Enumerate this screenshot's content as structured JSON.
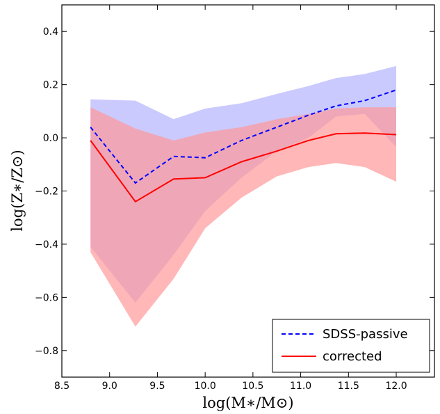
{
  "chart_data": {
    "type": "area",
    "xlabel": "log(M∗/M⊙)",
    "ylabel": "log(Z∗/Z⊙)",
    "xlim": [
      8.5,
      12.4
    ],
    "ylim": [
      -0.9,
      0.5
    ],
    "xticks": [
      8.5,
      9.0,
      9.5,
      10.0,
      10.5,
      11.0,
      11.5,
      12.0
    ],
    "xtick_labels": [
      "8.5",
      "9.0",
      "9.5",
      "10.0",
      "10.5",
      "11.0",
      "11.5",
      "12.0"
    ],
    "yticks": [
      -0.8,
      -0.6,
      -0.4,
      -0.2,
      0.0,
      0.2,
      0.4
    ],
    "ytick_labels": [
      "−0.8",
      "−0.6",
      "−0.4",
      "−0.2",
      "0.0",
      "0.2",
      "0.4"
    ],
    "grid": false,
    "legend_position": "bottom-right",
    "x": [
      8.8,
      9.27,
      9.67,
      10.0,
      10.38,
      10.75,
      11.08,
      11.37,
      11.67,
      12.0
    ],
    "series": [
      {
        "name": "SDSS-passive",
        "style": "dashed",
        "color": "#0000ff",
        "values": [
          0.04,
          -0.17,
          -0.07,
          -0.075,
          -0.01,
          0.04,
          0.085,
          0.12,
          0.14,
          0.18
        ],
        "upper": [
          0.145,
          0.14,
          0.07,
          0.11,
          0.13,
          0.165,
          0.195,
          0.225,
          0.24,
          0.27
        ],
        "lower": [
          -0.41,
          -0.62,
          -0.44,
          -0.275,
          -0.15,
          -0.05,
          0.0,
          0.08,
          0.09,
          -0.035
        ],
        "band_color": "#b3b3ff"
      },
      {
        "name": "corrected",
        "style": "solid",
        "color": "#ff0000",
        "values": [
          -0.01,
          -0.24,
          -0.155,
          -0.15,
          -0.09,
          -0.05,
          -0.01,
          0.015,
          0.018,
          0.012
        ],
        "upper": [
          0.115,
          0.035,
          -0.01,
          0.02,
          0.04,
          0.07,
          0.09,
          0.11,
          0.115,
          0.115
        ],
        "lower": [
          -0.43,
          -0.71,
          -0.53,
          -0.34,
          -0.225,
          -0.145,
          -0.11,
          -0.095,
          -0.11,
          -0.165
        ],
        "band_color": "#ff9999"
      }
    ]
  }
}
